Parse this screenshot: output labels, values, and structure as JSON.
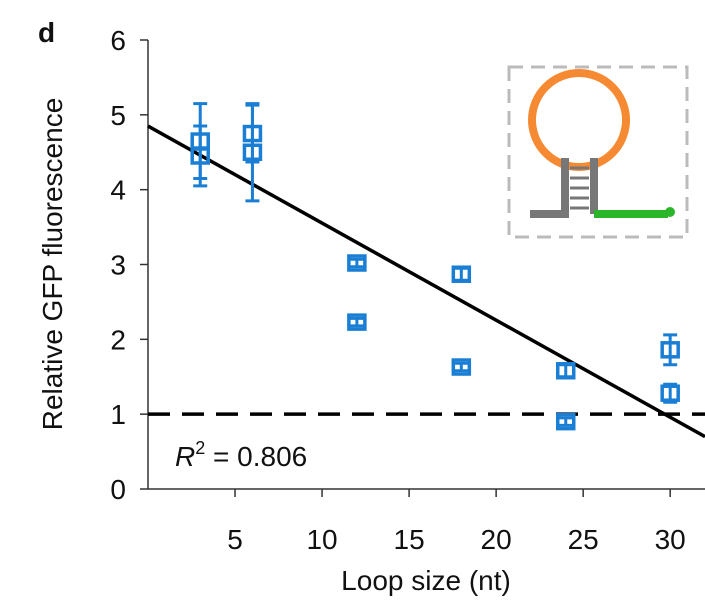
{
  "chart_data": {
    "type": "scatter",
    "panel_label": "d",
    "x_label": "Loop size (nt)",
    "y_label": "Relative GFP fluorescence",
    "series": [
      {
        "color": "#1a7fd4",
        "x": [
          3,
          3,
          6,
          6,
          12,
          12,
          18,
          18,
          24,
          24,
          30,
          30
        ],
        "values": [
          4.65,
          4.45,
          4.75,
          4.5,
          3.02,
          2.23,
          2.87,
          1.63,
          1.58,
          0.9,
          1.86,
          1.28
        ],
        "errors": [
          0.5,
          0.4,
          0.38,
          0.65,
          0.05,
          0.05,
          0.08,
          0.05,
          0.08,
          0.05,
          0.2,
          0.12
        ]
      }
    ],
    "fit_line": {
      "color": "#000000",
      "x": [
        0,
        32
      ],
      "y": [
        4.85,
        0.7
      ]
    },
    "reference_line": {
      "y": 1,
      "color": "#000000"
    },
    "annotation": {
      "base": "R",
      "sup": "2",
      "rest": " = 0.806"
    },
    "xlim": [
      0,
      32
    ],
    "xticks": [
      5,
      10,
      15,
      20,
      25,
      30
    ],
    "ylim": [
      0,
      6
    ],
    "yticks": [
      0,
      1,
      2,
      3,
      4,
      5,
      6
    ]
  }
}
